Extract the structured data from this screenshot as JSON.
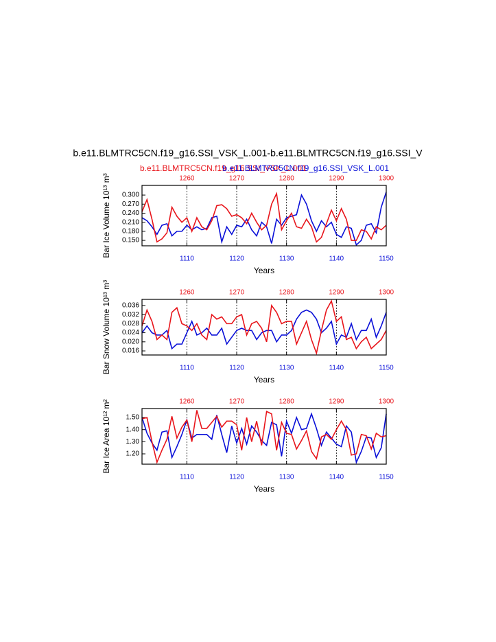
{
  "title": "b.e11.BLMTRC5CN.f19_g16.SSI_VSK_L.001-b.e11.BLMTRC5CN.f19_g16.SSI_V",
  "subtitles": [
    {
      "text": "b.e11.BLMTRC5CN.f19_g16.SSI_VSK_L.001",
      "color": "#e8151b"
    },
    {
      "text": "b.e11.BLMTRC5CN.f19_g16.SSI_VSK_L.001",
      "color": "#0a10d8"
    }
  ],
  "chart_data": [
    {
      "type": "line",
      "y_label": "Bar Ice Volume 10¹³ m³",
      "x_label": "Years",
      "x": [
        1101,
        1102,
        1103,
        1104,
        1105,
        1106,
        1107,
        1108,
        1109,
        1110,
        1111,
        1112,
        1113,
        1114,
        1115,
        1116,
        1117,
        1118,
        1119,
        1120,
        1121,
        1122,
        1123,
        1124,
        1125,
        1126,
        1127,
        1128,
        1129,
        1130,
        1131,
        1132,
        1133,
        1134,
        1135,
        1136,
        1137,
        1138,
        1139,
        1140,
        1141,
        1142,
        1143,
        1144,
        1145,
        1146,
        1147,
        1148,
        1149,
        1150
      ],
      "x2": [
        1251,
        1252,
        1253,
        1254,
        1255,
        1256,
        1257,
        1258,
        1259,
        1260,
        1261,
        1262,
        1263,
        1264,
        1265,
        1266,
        1267,
        1268,
        1269,
        1270,
        1271,
        1272,
        1273,
        1274,
        1275,
        1276,
        1277,
        1278,
        1279,
        1280,
        1281,
        1282,
        1283,
        1284,
        1285,
        1286,
        1287,
        1288,
        1289,
        1290,
        1291,
        1292,
        1293,
        1294,
        1295,
        1296,
        1297,
        1298,
        1299,
        1300
      ],
      "xlim": [
        1101,
        1150
      ],
      "xticks": [
        1110,
        1120,
        1130,
        1140,
        1150
      ],
      "x2lim": [
        1251,
        1300
      ],
      "x2ticks": [
        1260,
        1270,
        1280,
        1290,
        1300
      ],
      "ylim": [
        0.132,
        0.332
      ],
      "yticks": [
        {
          "value": 0.15,
          "label": "0.150"
        },
        {
          "value": 0.18,
          "label": "0.180"
        },
        {
          "value": 0.21,
          "label": "0.210"
        },
        {
          "value": 0.24,
          "label": "0.240"
        },
        {
          "value": 0.27,
          "label": "0.270"
        },
        {
          "value": 0.3,
          "label": "0.300"
        }
      ],
      "grid": "x",
      "series": [
        {
          "color": "#0a10d8",
          "axis": "x",
          "values": [
            0.225,
            0.215,
            0.195,
            0.17,
            0.2,
            0.205,
            0.165,
            0.18,
            0.18,
            0.2,
            0.185,
            0.195,
            0.185,
            0.19,
            0.225,
            0.23,
            0.145,
            0.195,
            0.17,
            0.2,
            0.195,
            0.22,
            0.185,
            0.165,
            0.21,
            0.195,
            0.14,
            0.22,
            0.2,
            0.225,
            0.23,
            0.235,
            0.3,
            0.27,
            0.215,
            0.18,
            0.215,
            0.195,
            0.21,
            0.17,
            0.16,
            0.195,
            0.19,
            0.135,
            0.15,
            0.2,
            0.205,
            0.175,
            0.26,
            0.31
          ]
        },
        {
          "color": "#e8151b",
          "axis": "x2",
          "values": [
            0.245,
            0.285,
            0.22,
            0.145,
            0.155,
            0.175,
            0.26,
            0.23,
            0.21,
            0.225,
            0.18,
            0.225,
            0.195,
            0.185,
            0.215,
            0.265,
            0.268,
            0.255,
            0.23,
            0.235,
            0.225,
            0.205,
            0.24,
            0.21,
            0.185,
            0.2,
            0.27,
            0.305,
            0.185,
            0.215,
            0.24,
            0.195,
            0.19,
            0.22,
            0.195,
            0.145,
            0.16,
            0.205,
            0.25,
            0.215,
            0.255,
            0.22,
            0.15,
            0.15,
            0.185,
            0.18,
            0.155,
            0.195,
            0.185,
            0.2
          ]
        }
      ]
    },
    {
      "type": "line",
      "y_label": "Bar Snow Volume 10¹³ m³",
      "x_label": "Years",
      "x": [
        1101,
        1102,
        1103,
        1104,
        1105,
        1106,
        1107,
        1108,
        1109,
        1110,
        1111,
        1112,
        1113,
        1114,
        1115,
        1116,
        1117,
        1118,
        1119,
        1120,
        1121,
        1122,
        1123,
        1124,
        1125,
        1126,
        1127,
        1128,
        1129,
        1130,
        1131,
        1132,
        1133,
        1134,
        1135,
        1136,
        1137,
        1138,
        1139,
        1140,
        1141,
        1142,
        1143,
        1144,
        1145,
        1146,
        1147,
        1148,
        1149,
        1150
      ],
      "x2": [
        1251,
        1252,
        1253,
        1254,
        1255,
        1256,
        1257,
        1258,
        1259,
        1260,
        1261,
        1262,
        1263,
        1264,
        1265,
        1266,
        1267,
        1268,
        1269,
        1270,
        1271,
        1272,
        1273,
        1274,
        1275,
        1276,
        1277,
        1278,
        1279,
        1280,
        1281,
        1282,
        1283,
        1284,
        1285,
        1286,
        1287,
        1288,
        1289,
        1290,
        1291,
        1292,
        1293,
        1294,
        1295,
        1296,
        1297,
        1298,
        1299,
        1300
      ],
      "xlim": [
        1101,
        1150
      ],
      "xticks": [
        1110,
        1120,
        1130,
        1140,
        1150
      ],
      "x2lim": [
        1251,
        1300
      ],
      "x2ticks": [
        1260,
        1270,
        1280,
        1290,
        1300
      ],
      "ylim": [
        0.0142,
        0.0387
      ],
      "yticks": [
        0.016,
        0.02,
        0.024,
        0.028,
        0.032,
        0.036
      ],
      "yticks_labels": [
        "0.016",
        "0.020",
        "0.024",
        "0.028",
        "0.032",
        "0.036"
      ],
      "grid": "x",
      "series": [
        {
          "color": "#0a10d8",
          "axis": "x",
          "values": [
            0.024,
            0.027,
            0.024,
            0.023,
            0.023,
            0.025,
            0.017,
            0.019,
            0.019,
            0.024,
            0.029,
            0.023,
            0.024,
            0.026,
            0.023,
            0.023,
            0.026,
            0.019,
            0.022,
            0.025,
            0.026,
            0.025,
            0.025,
            0.021,
            0.024,
            0.025,
            0.025,
            0.02,
            0.023,
            0.023,
            0.025,
            0.03,
            0.033,
            0.034,
            0.033,
            0.03,
            0.024,
            0.026,
            0.029,
            0.019,
            0.023,
            0.022,
            0.028,
            0.021,
            0.025,
            0.025,
            0.03,
            0.022,
            0.027,
            0.033
          ]
        },
        {
          "color": "#e8151b",
          "axis": "x2",
          "values": [
            0.027,
            0.034,
            0.029,
            0.021,
            0.023,
            0.021,
            0.033,
            0.035,
            0.028,
            0.027,
            0.025,
            0.028,
            0.023,
            0.021,
            0.032,
            0.03,
            0.031,
            0.028,
            0.028,
            0.031,
            0.032,
            0.023,
            0.028,
            0.029,
            0.026,
            0.02,
            0.036,
            0.033,
            0.028,
            0.029,
            0.029,
            0.019,
            0.024,
            0.029,
            0.021,
            0.015,
            0.025,
            0.034,
            0.038,
            0.029,
            0.031,
            0.021,
            0.022,
            0.017,
            0.02,
            0.022,
            0.017,
            0.019,
            0.021,
            0.025
          ]
        }
      ]
    },
    {
      "type": "line",
      "y_label": "Bar Ice Area 10¹² m²",
      "x_label": "Years",
      "x": [
        1101,
        1102,
        1103,
        1104,
        1105,
        1106,
        1107,
        1108,
        1109,
        1110,
        1111,
        1112,
        1113,
        1114,
        1115,
        1116,
        1117,
        1118,
        1119,
        1120,
        1121,
        1122,
        1123,
        1124,
        1125,
        1126,
        1127,
        1128,
        1129,
        1130,
        1131,
        1132,
        1133,
        1134,
        1135,
        1136,
        1137,
        1138,
        1139,
        1140,
        1141,
        1142,
        1143,
        1144,
        1145,
        1146,
        1147,
        1148,
        1149,
        1150
      ],
      "x2": [
        1251,
        1252,
        1253,
        1254,
        1255,
        1256,
        1257,
        1258,
        1259,
        1260,
        1261,
        1262,
        1263,
        1264,
        1265,
        1266,
        1267,
        1268,
        1269,
        1270,
        1271,
        1272,
        1273,
        1274,
        1275,
        1276,
        1277,
        1278,
        1279,
        1280,
        1281,
        1282,
        1283,
        1284,
        1285,
        1286,
        1287,
        1288,
        1289,
        1290,
        1291,
        1292,
        1293,
        1294,
        1295,
        1296,
        1297,
        1298,
        1299,
        1300
      ],
      "xlim": [
        1101,
        1150
      ],
      "xticks": [
        1110,
        1120,
        1130,
        1140,
        1150
      ],
      "x2lim": [
        1251,
        1300
      ],
      "x2ticks": [
        1260,
        1270,
        1280,
        1290,
        1300
      ],
      "ylim": [
        1.115,
        1.574
      ],
      "yticks": [
        {
          "value": 1.2,
          "label": "1.20"
        },
        {
          "value": 1.3,
          "label": "1.30"
        },
        {
          "value": 1.4,
          "label": "1.40"
        },
        {
          "value": 1.5,
          "label": "1.50"
        }
      ],
      "grid": "x",
      "series": [
        {
          "color": "#0a10d8",
          "axis": "x",
          "values": [
            1.5,
            1.37,
            1.29,
            1.23,
            1.38,
            1.39,
            1.17,
            1.26,
            1.36,
            1.48,
            1.33,
            1.36,
            1.36,
            1.36,
            1.32,
            1.52,
            1.36,
            1.21,
            1.43,
            1.29,
            1.41,
            1.28,
            1.43,
            1.38,
            1.31,
            1.27,
            1.46,
            1.44,
            1.18,
            1.47,
            1.37,
            1.5,
            1.4,
            1.41,
            1.53,
            1.41,
            1.27,
            1.38,
            1.33,
            1.28,
            1.26,
            1.43,
            1.38,
            1.13,
            1.22,
            1.34,
            1.33,
            1.17,
            1.25,
            1.53
          ]
        },
        {
          "color": "#e8151b",
          "axis": "x2",
          "values": [
            1.49,
            1.5,
            1.3,
            1.13,
            1.23,
            1.32,
            1.51,
            1.33,
            1.42,
            1.48,
            1.3,
            1.56,
            1.41,
            1.41,
            1.46,
            1.51,
            1.42,
            1.47,
            1.47,
            1.44,
            1.23,
            1.5,
            1.3,
            1.47,
            1.27,
            1.55,
            1.53,
            1.23,
            1.46,
            1.37,
            1.36,
            1.24,
            1.31,
            1.39,
            1.22,
            1.16,
            1.34,
            1.36,
            1.32,
            1.4,
            1.47,
            1.4,
            1.19,
            1.2,
            1.36,
            1.35,
            1.24,
            1.37,
            1.34,
            1.35
          ]
        }
      ]
    }
  ]
}
